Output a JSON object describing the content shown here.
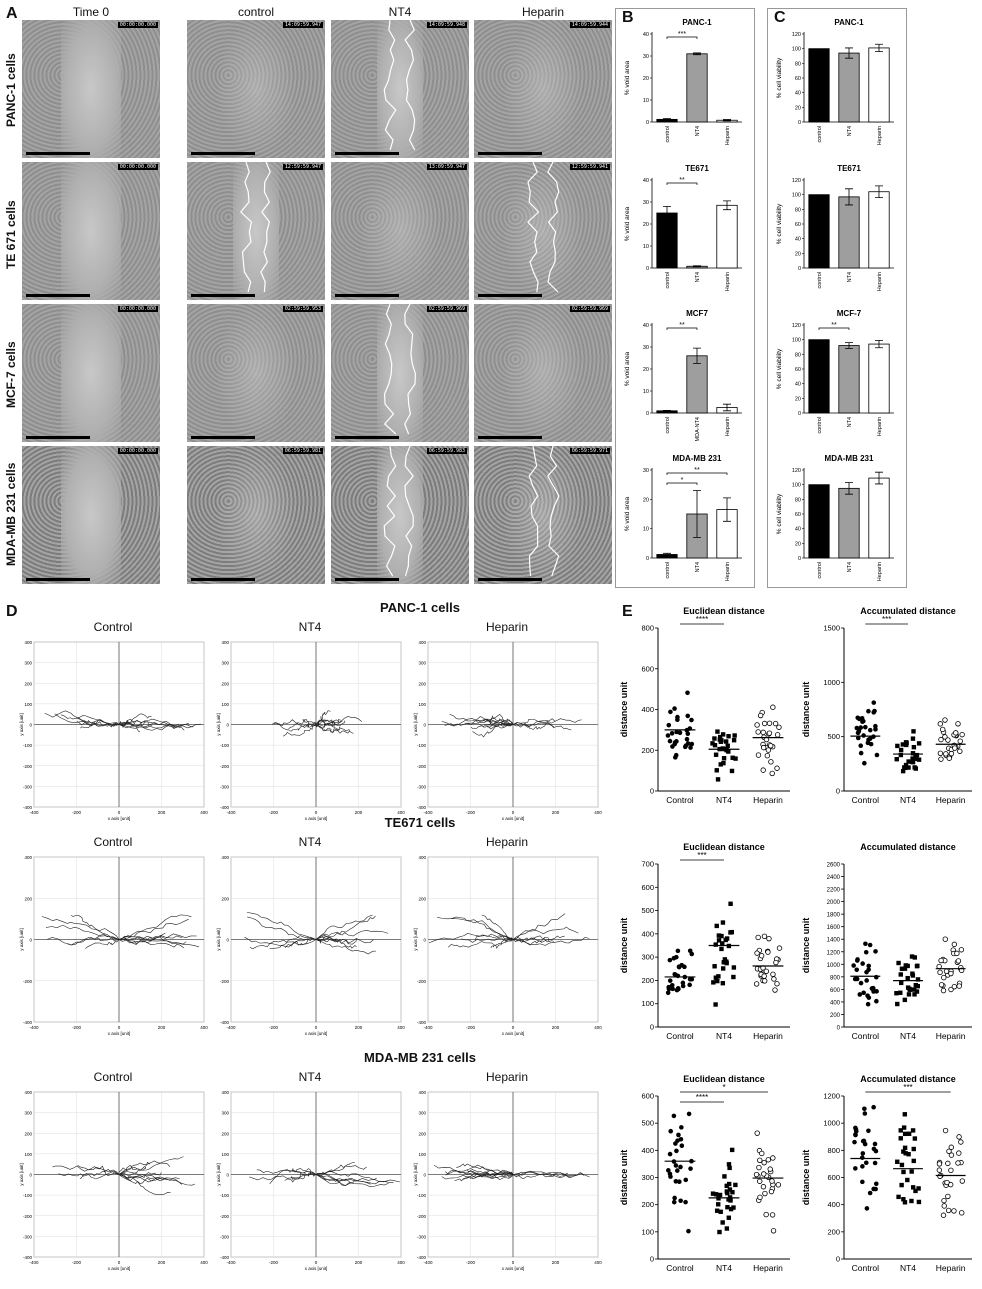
{
  "panelA": {
    "label": "A",
    "columns": [
      "Time 0",
      "control",
      "NT4",
      "Heparin"
    ],
    "rows": [
      {
        "name": "PANC-1 cells",
        "stamps": [
          "00:00:00.000",
          "14:09:59.947",
          "14:09:59.948",
          "14:09:59.944"
        ]
      },
      {
        "name": "TE 671 cells",
        "stamps": [
          "00:00:00.000",
          "12:59:59.947",
          "13:09:59.947",
          "12:59:59.941"
        ]
      },
      {
        "name": "MCF-7 cells",
        "stamps": [
          "00:00:00.000",
          "02:59:59.953",
          "02:59:59.969",
          "02:59:59.969"
        ]
      },
      {
        "name": "MDA-MB 231 cells",
        "stamps": [
          "00:00:00.000",
          "06:59:59.981",
          "06:59:59.983",
          "06:59:59.971"
        ]
      }
    ]
  },
  "panelB": {
    "label": "B",
    "ylabel": "% void area",
    "charts": [
      {
        "title": "PANC-1",
        "categories": [
          "control",
          "NT4",
          "Heparin"
        ],
        "values": [
          1.2,
          31,
          0.8
        ],
        "errors": [
          0.4,
          0.4,
          0.3
        ],
        "ylim": [
          0,
          40
        ],
        "yticks": [
          0,
          10,
          20,
          30,
          40
        ],
        "sig": [
          {
            "from": 0,
            "to": 1,
            "label": "***"
          }
        ]
      },
      {
        "title": "TE671",
        "categories": [
          "control",
          "NT4",
          "Heparin"
        ],
        "values": [
          25,
          0.8,
          28.5
        ],
        "errors": [
          3,
          0.2,
          2
        ],
        "ylim": [
          0,
          40
        ],
        "yticks": [
          0,
          10,
          20,
          30,
          40
        ],
        "sig": [
          {
            "from": 0,
            "to": 1,
            "label": "**"
          }
        ]
      },
      {
        "title": "MCF7",
        "categories": [
          "control",
          "MDA-NT4",
          "Heparin"
        ],
        "values": [
          1,
          26,
          2.5
        ],
        "errors": [
          0.2,
          3.5,
          1.5
        ],
        "ylim": [
          0,
          40
        ],
        "yticks": [
          0,
          10,
          20,
          30,
          40
        ],
        "sig": [
          {
            "from": 0,
            "to": 1,
            "label": "**"
          }
        ]
      },
      {
        "title": "MDA-MB 231",
        "categories": [
          "control",
          "NT4",
          "Heparin"
        ],
        "values": [
          1.2,
          15,
          16.5
        ],
        "errors": [
          0.4,
          8,
          4
        ],
        "ylim": [
          0,
          30
        ],
        "yticks": [
          0,
          10,
          20,
          30
        ],
        "sig": [
          {
            "from": 0,
            "to": 2,
            "label": "**"
          },
          {
            "from": 0,
            "to": 1,
            "label": "*"
          }
        ]
      }
    ]
  },
  "panelC": {
    "label": "C",
    "ylabel": "% cell viability",
    "charts": [
      {
        "title": "PANC-1",
        "categories": [
          "control",
          "NT4",
          "Heparin"
        ],
        "values": [
          100,
          94,
          101
        ],
        "errors": [
          0,
          7,
          5
        ],
        "ylim": [
          0,
          120
        ],
        "yticks": [
          0,
          20,
          40,
          60,
          80,
          100,
          120
        ],
        "sig": []
      },
      {
        "title": "TE671",
        "categories": [
          "control",
          "NT4",
          "Heparin"
        ],
        "values": [
          100,
          97,
          104
        ],
        "errors": [
          0,
          11,
          8
        ],
        "ylim": [
          0,
          120
        ],
        "yticks": [
          0,
          20,
          40,
          60,
          80,
          100,
          120
        ],
        "sig": []
      },
      {
        "title": "MCF-7",
        "categories": [
          "control",
          "NT4",
          "Heparin"
        ],
        "values": [
          100,
          92,
          94
        ],
        "errors": [
          0,
          4,
          5
        ],
        "ylim": [
          0,
          120
        ],
        "yticks": [
          0,
          20,
          40,
          60,
          80,
          100,
          120
        ],
        "sig": [
          {
            "from": 0,
            "to": 1,
            "label": "**"
          }
        ]
      },
      {
        "title": "MDA-MB 231",
        "categories": [
          "control",
          "NT4",
          "Heparin"
        ],
        "values": [
          100,
          95,
          109
        ],
        "errors": [
          0,
          8,
          8
        ],
        "ylim": [
          0,
          120
        ],
        "yticks": [
          0,
          20,
          40,
          60,
          80,
          100,
          120
        ],
        "sig": []
      }
    ]
  },
  "panelD": {
    "label": "D",
    "xlabel": "x axis [unit]",
    "ylabel": "y axis [unit]",
    "groups": [
      {
        "title": "PANC-1 cells",
        "plots": [
          "Control",
          "NT4",
          "Heparin"
        ],
        "ylim": [
          -400,
          400
        ],
        "yticks": [
          -400,
          -300,
          -200,
          -100,
          0,
          100,
          200,
          300,
          400
        ],
        "xticks": [
          -400,
          -200,
          0,
          200,
          400
        ]
      },
      {
        "title": "TE671 cells",
        "plots": [
          "Control",
          "NT4",
          "Heparin"
        ],
        "ylim": [
          -400,
          400
        ],
        "yticks": [
          -400,
          -200,
          0,
          200,
          400
        ],
        "xticks": [
          -400,
          -200,
          0,
          200,
          400
        ]
      },
      {
        "title": "MDA-MB 231 cells",
        "plots": [
          "Control",
          "NT4",
          "Heparin"
        ],
        "ylim": [
          -400,
          400
        ],
        "yticks": [
          -400,
          -300,
          -200,
          -100,
          0,
          100,
          200,
          300,
          400
        ],
        "xticks": [
          -400,
          -200,
          0,
          200,
          400
        ]
      }
    ]
  },
  "panelE": {
    "label": "E",
    "ylabel": "distance unit",
    "categories": [
      "Control",
      "NT4",
      "Heparin"
    ],
    "charts": [
      {
        "title": "Euclidean distance",
        "ylim": [
          0,
          800
        ],
        "yticks": [
          0,
          200,
          400,
          600,
          800
        ],
        "means": [
          300,
          205,
          262
        ],
        "sig": [
          {
            "from": 0,
            "to": 1,
            "label": "****"
          }
        ]
      },
      {
        "title": "Accumulated distance",
        "ylim": [
          0,
          1500
        ],
        "yticks": [
          0,
          500,
          1000,
          1500
        ],
        "means": [
          505,
          340,
          430
        ],
        "sig": [
          {
            "from": 0,
            "to": 1,
            "label": "***"
          }
        ]
      },
      {
        "title": "Euclidean distance",
        "ylim": [
          0,
          700
        ],
        "yticks": [
          0,
          100,
          200,
          300,
          400,
          500,
          600,
          700
        ],
        "means": [
          215,
          350,
          262
        ],
        "sig": [
          {
            "from": 0,
            "to": 1,
            "label": "***"
          }
        ]
      },
      {
        "title": "Accumulated distance",
        "ylim": [
          0,
          2600
        ],
        "yticks": [
          0,
          200,
          400,
          600,
          800,
          1000,
          1200,
          1400,
          1600,
          1800,
          2000,
          2200,
          2400,
          2600
        ],
        "means": [
          810,
          740,
          930
        ],
        "sig": []
      },
      {
        "title": "Euclidean distance",
        "ylim": [
          0,
          600
        ],
        "yticks": [
          0,
          100,
          200,
          300,
          400,
          500,
          600
        ],
        "means": [
          360,
          225,
          298
        ],
        "sig": [
          {
            "from": 0,
            "to": 2,
            "label": "*"
          },
          {
            "from": 0,
            "to": 1,
            "label": "****"
          }
        ]
      },
      {
        "title": "Accumulated distance",
        "ylim": [
          0,
          1200
        ],
        "yticks": [
          0,
          200,
          400,
          600,
          800,
          1000,
          1200
        ],
        "means": [
          740,
          665,
          615
        ],
        "sig": [
          {
            "from": 0,
            "to": 2,
            "label": "***"
          }
        ]
      }
    ]
  }
}
